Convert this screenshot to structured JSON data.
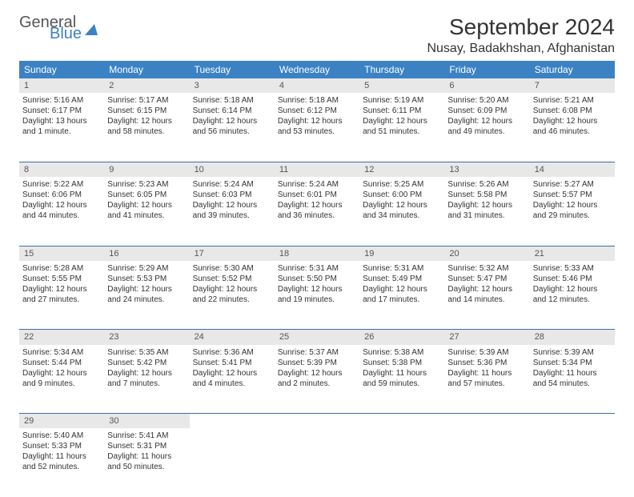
{
  "brand": {
    "part1": "General",
    "part2": "Blue"
  },
  "title": "September 2024",
  "location": "Nusay, Badakhshan, Afghanistan",
  "colors": {
    "header_bg": "#3b82c4",
    "header_text": "#ffffff",
    "daynum_bg": "#e8e8e8",
    "border": "#3b6ea0",
    "text": "#333333"
  },
  "weekdays": [
    "Sunday",
    "Monday",
    "Tuesday",
    "Wednesday",
    "Thursday",
    "Friday",
    "Saturday"
  ],
  "weeks": [
    [
      {
        "n": "1",
        "sr": "Sunrise: 5:16 AM",
        "ss": "Sunset: 6:17 PM",
        "dl": "Daylight: 13 hours and 1 minute."
      },
      {
        "n": "2",
        "sr": "Sunrise: 5:17 AM",
        "ss": "Sunset: 6:15 PM",
        "dl": "Daylight: 12 hours and 58 minutes."
      },
      {
        "n": "3",
        "sr": "Sunrise: 5:18 AM",
        "ss": "Sunset: 6:14 PM",
        "dl": "Daylight: 12 hours and 56 minutes."
      },
      {
        "n": "4",
        "sr": "Sunrise: 5:18 AM",
        "ss": "Sunset: 6:12 PM",
        "dl": "Daylight: 12 hours and 53 minutes."
      },
      {
        "n": "5",
        "sr": "Sunrise: 5:19 AM",
        "ss": "Sunset: 6:11 PM",
        "dl": "Daylight: 12 hours and 51 minutes."
      },
      {
        "n": "6",
        "sr": "Sunrise: 5:20 AM",
        "ss": "Sunset: 6:09 PM",
        "dl": "Daylight: 12 hours and 49 minutes."
      },
      {
        "n": "7",
        "sr": "Sunrise: 5:21 AM",
        "ss": "Sunset: 6:08 PM",
        "dl": "Daylight: 12 hours and 46 minutes."
      }
    ],
    [
      {
        "n": "8",
        "sr": "Sunrise: 5:22 AM",
        "ss": "Sunset: 6:06 PM",
        "dl": "Daylight: 12 hours and 44 minutes."
      },
      {
        "n": "9",
        "sr": "Sunrise: 5:23 AM",
        "ss": "Sunset: 6:05 PM",
        "dl": "Daylight: 12 hours and 41 minutes."
      },
      {
        "n": "10",
        "sr": "Sunrise: 5:24 AM",
        "ss": "Sunset: 6:03 PM",
        "dl": "Daylight: 12 hours and 39 minutes."
      },
      {
        "n": "11",
        "sr": "Sunrise: 5:24 AM",
        "ss": "Sunset: 6:01 PM",
        "dl": "Daylight: 12 hours and 36 minutes."
      },
      {
        "n": "12",
        "sr": "Sunrise: 5:25 AM",
        "ss": "Sunset: 6:00 PM",
        "dl": "Daylight: 12 hours and 34 minutes."
      },
      {
        "n": "13",
        "sr": "Sunrise: 5:26 AM",
        "ss": "Sunset: 5:58 PM",
        "dl": "Daylight: 12 hours and 31 minutes."
      },
      {
        "n": "14",
        "sr": "Sunrise: 5:27 AM",
        "ss": "Sunset: 5:57 PM",
        "dl": "Daylight: 12 hours and 29 minutes."
      }
    ],
    [
      {
        "n": "15",
        "sr": "Sunrise: 5:28 AM",
        "ss": "Sunset: 5:55 PM",
        "dl": "Daylight: 12 hours and 27 minutes."
      },
      {
        "n": "16",
        "sr": "Sunrise: 5:29 AM",
        "ss": "Sunset: 5:53 PM",
        "dl": "Daylight: 12 hours and 24 minutes."
      },
      {
        "n": "17",
        "sr": "Sunrise: 5:30 AM",
        "ss": "Sunset: 5:52 PM",
        "dl": "Daylight: 12 hours and 22 minutes."
      },
      {
        "n": "18",
        "sr": "Sunrise: 5:31 AM",
        "ss": "Sunset: 5:50 PM",
        "dl": "Daylight: 12 hours and 19 minutes."
      },
      {
        "n": "19",
        "sr": "Sunrise: 5:31 AM",
        "ss": "Sunset: 5:49 PM",
        "dl": "Daylight: 12 hours and 17 minutes."
      },
      {
        "n": "20",
        "sr": "Sunrise: 5:32 AM",
        "ss": "Sunset: 5:47 PM",
        "dl": "Daylight: 12 hours and 14 minutes."
      },
      {
        "n": "21",
        "sr": "Sunrise: 5:33 AM",
        "ss": "Sunset: 5:46 PM",
        "dl": "Daylight: 12 hours and 12 minutes."
      }
    ],
    [
      {
        "n": "22",
        "sr": "Sunrise: 5:34 AM",
        "ss": "Sunset: 5:44 PM",
        "dl": "Daylight: 12 hours and 9 minutes."
      },
      {
        "n": "23",
        "sr": "Sunrise: 5:35 AM",
        "ss": "Sunset: 5:42 PM",
        "dl": "Daylight: 12 hours and 7 minutes."
      },
      {
        "n": "24",
        "sr": "Sunrise: 5:36 AM",
        "ss": "Sunset: 5:41 PM",
        "dl": "Daylight: 12 hours and 4 minutes."
      },
      {
        "n": "25",
        "sr": "Sunrise: 5:37 AM",
        "ss": "Sunset: 5:39 PM",
        "dl": "Daylight: 12 hours and 2 minutes."
      },
      {
        "n": "26",
        "sr": "Sunrise: 5:38 AM",
        "ss": "Sunset: 5:38 PM",
        "dl": "Daylight: 11 hours and 59 minutes."
      },
      {
        "n": "27",
        "sr": "Sunrise: 5:39 AM",
        "ss": "Sunset: 5:36 PM",
        "dl": "Daylight: 11 hours and 57 minutes."
      },
      {
        "n": "28",
        "sr": "Sunrise: 5:39 AM",
        "ss": "Sunset: 5:34 PM",
        "dl": "Daylight: 11 hours and 54 minutes."
      }
    ],
    [
      {
        "n": "29",
        "sr": "Sunrise: 5:40 AM",
        "ss": "Sunset: 5:33 PM",
        "dl": "Daylight: 11 hours and 52 minutes."
      },
      {
        "n": "30",
        "sr": "Sunrise: 5:41 AM",
        "ss": "Sunset: 5:31 PM",
        "dl": "Daylight: 11 hours and 50 minutes."
      },
      null,
      null,
      null,
      null,
      null
    ]
  ]
}
